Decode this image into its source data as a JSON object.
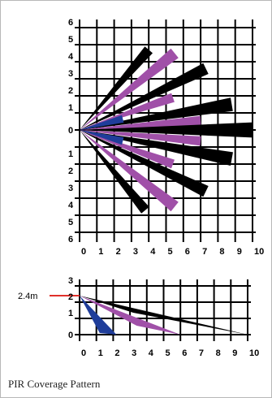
{
  "caption": "PIR Coverage Pattern",
  "colors": {
    "black": "#000000",
    "purple": "#a050a8",
    "blue": "#1f3d9a",
    "height_marker": "#e0302a",
    "grid": "#000000"
  },
  "top_view": {
    "x_ticks": [
      "0",
      "1",
      "2",
      "3",
      "4",
      "5",
      "6",
      "7",
      "8",
      "9",
      "10"
    ],
    "y_ticks_upper": [
      "6",
      "5",
      "4",
      "3",
      "2",
      "1"
    ],
    "y_ticks_center": "0",
    "y_ticks_lower": [
      "1",
      "2",
      "3",
      "4",
      "5",
      "6"
    ],
    "x_range": [
      0,
      10
    ],
    "y_range": [
      -6,
      6
    ],
    "origin": [
      0,
      0
    ],
    "beams": [
      {
        "name": "beam-black-top",
        "color": "black",
        "tip": [
          4,
          4.7
        ],
        "width": 0.6
      },
      {
        "name": "beam-purple-top",
        "color": "purple",
        "tip": [
          5.5,
          4.5
        ],
        "width": 0.7
      },
      {
        "name": "beam-black-upper-2",
        "color": "black",
        "tip": [
          7.3,
          3.6
        ],
        "width": 0.7
      },
      {
        "name": "beam-purple-upper-2",
        "color": "purple",
        "tip": [
          5.4,
          1.9
        ],
        "width": 0.55
      },
      {
        "name": "beam-black-upper-3",
        "color": "black",
        "tip": [
          8.8,
          1.5
        ],
        "width": 0.8
      },
      {
        "name": "beam-purple-upper-3",
        "color": "purple",
        "tip": [
          7,
          0.55
        ],
        "width": 0.55
      },
      {
        "name": "beam-black-center",
        "color": "black",
        "tip": [
          10,
          0
        ],
        "width": 0.9
      },
      {
        "name": "beam-purple-lower-3",
        "color": "purple",
        "tip": [
          7,
          -0.65
        ],
        "width": 0.55
      },
      {
        "name": "beam-black-lower-3",
        "color": "black",
        "tip": [
          8.8,
          -1.7
        ],
        "width": 0.8
      },
      {
        "name": "beam-purple-lower-2",
        "color": "purple",
        "tip": [
          5.4,
          -2
        ],
        "width": 0.55
      },
      {
        "name": "beam-black-lower-2",
        "color": "black",
        "tip": [
          7.3,
          -3.6
        ],
        "width": 0.7
      },
      {
        "name": "beam-purple-bottom",
        "color": "purple",
        "tip": [
          5.5,
          -4.5
        ],
        "width": 0.7
      },
      {
        "name": "beam-black-bottom",
        "color": "black",
        "tip": [
          3.8,
          -4.7
        ],
        "width": 0.6
      }
    ],
    "short_beams": [
      {
        "name": "beam-blue-upper",
        "color": "blue",
        "tip": [
          2.5,
          0.65
        ]
      },
      {
        "name": "beam-blue-lower",
        "color": "blue",
        "tip": [
          2.5,
          -0.65
        ]
      }
    ]
  },
  "side_view": {
    "x_ticks": [
      "0",
      "1",
      "2",
      "3",
      "4",
      "5",
      "6",
      "7",
      "8",
      "9",
      "10"
    ],
    "y_ticks": [
      "3",
      "2",
      "1",
      "0"
    ],
    "x_range": [
      0,
      10
    ],
    "y_range": [
      0,
      3
    ],
    "mount_height_label": "2.4m",
    "mount_height": 2.4,
    "zones": [
      {
        "name": "zone-black",
        "color": "black",
        "reach": 10
      },
      {
        "name": "zone-purple",
        "color": "purple",
        "reach": 6
      },
      {
        "name": "zone-blue",
        "color": "blue",
        "reach": 2.2
      }
    ]
  }
}
